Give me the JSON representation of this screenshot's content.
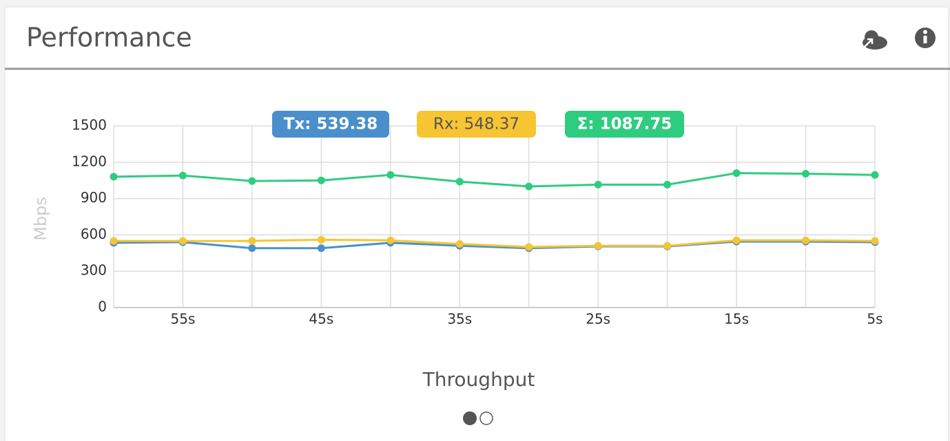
{
  "header": {
    "title": "Performance"
  },
  "chart_data": {
    "type": "line",
    "categories": [
      null,
      "55s",
      null,
      "45s",
      null,
      "35s",
      null,
      "25s",
      null,
      "15s",
      null,
      "5s"
    ],
    "series": [
      {
        "color": "#4a90cc",
        "values": [
          535,
          540,
          490,
          490,
          535,
          510,
          490,
          505,
          505,
          545,
          545,
          540
        ]
      },
      {
        "color": "#f5c532",
        "values": [
          550,
          550,
          550,
          560,
          555,
          525,
          500,
          510,
          510,
          555,
          555,
          550
        ]
      },
      {
        "color": "#2ecc80",
        "values": [
          1080,
          1090,
          1045,
          1050,
          1095,
          1040,
          1000,
          1015,
          1015,
          1110,
          1105,
          1095
        ]
      }
    ],
    "badges": [
      {
        "label": "Tx: 539.38",
        "color": "#4a8fcb",
        "text_color": "#ffffff"
      },
      {
        "label": "Rx: 548.37",
        "color": "#f7c531",
        "text_color": "#555555"
      },
      {
        "label": "Σ: 1087.75",
        "color": "#2ecc7f",
        "text_color": "#ffffff"
      }
    ],
    "ylabel": "Mbps",
    "xlabel": "Throughput",
    "ylim": [
      0,
      1500
    ],
    "yticks": [
      0,
      300,
      600,
      900,
      1200,
      1500
    ],
    "grid": true
  }
}
